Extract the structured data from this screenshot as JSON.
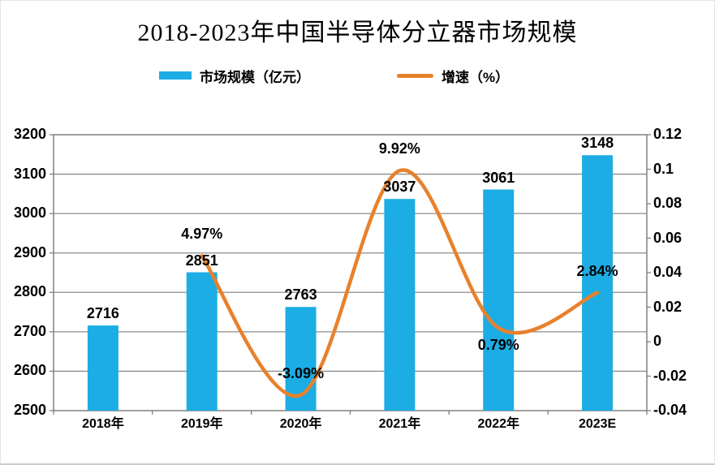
{
  "title": "2018-2023年中国半导体分立器市场规模",
  "colors": {
    "bar": "#1CADE4",
    "line": "#E8812C",
    "grid": "#8C8C8C",
    "axis": "#808080",
    "text": "#000000"
  },
  "legend": {
    "items": [
      {
        "label": "市场规模（亿元）",
        "marker": "bar-swatch",
        "color": "#1CADE4"
      },
      {
        "label": "增速（%）",
        "marker": "line-swatch",
        "color": "#E8812C"
      }
    ]
  },
  "chart_data": {
    "type": "combo-bar-line",
    "title": "2018-2023年中国半导体分立器市场规模",
    "categories": [
      "2018年",
      "2019年",
      "2020年",
      "2021年",
      "2022年",
      "2023E"
    ],
    "series": [
      {
        "name": "市场规模（亿元）",
        "type": "bar",
        "axis": "left",
        "color": "#1CADE4",
        "values": [
          2716,
          2851,
          2763,
          3037,
          3061,
          3148
        ],
        "data_labels": [
          "2716",
          "2851",
          "2763",
          "3037",
          "3061",
          "3148"
        ]
      },
      {
        "name": "增速（%）",
        "type": "line",
        "axis": "right",
        "color": "#E8812C",
        "smooth": true,
        "values": [
          null,
          0.0497,
          -0.0309,
          0.0992,
          0.0079,
          0.0284
        ],
        "data_labels": [
          null,
          "4.97%",
          "-3.09%",
          "9.92%",
          "0.79%",
          "2.84%"
        ],
        "label_side": [
          null,
          "above",
          "above",
          "above",
          "below",
          "above"
        ]
      }
    ],
    "left_axis": {
      "min": 2500,
      "max": 3200,
      "step": 100,
      "ticks_top_to_bottom": [
        "3200",
        "3100",
        "3000",
        "2900",
        "2800",
        "2700",
        "2600",
        "2500"
      ]
    },
    "right_axis": {
      "min": -0.04,
      "max": 0.12,
      "step": 0.02,
      "ticks_top_to_bottom": [
        "0.12",
        "0.1",
        "0.08",
        "0.06",
        "0.04",
        "0.02",
        "0",
        "-0.02",
        "-0.04"
      ]
    },
    "grid": true,
    "legend_position": "top"
  }
}
